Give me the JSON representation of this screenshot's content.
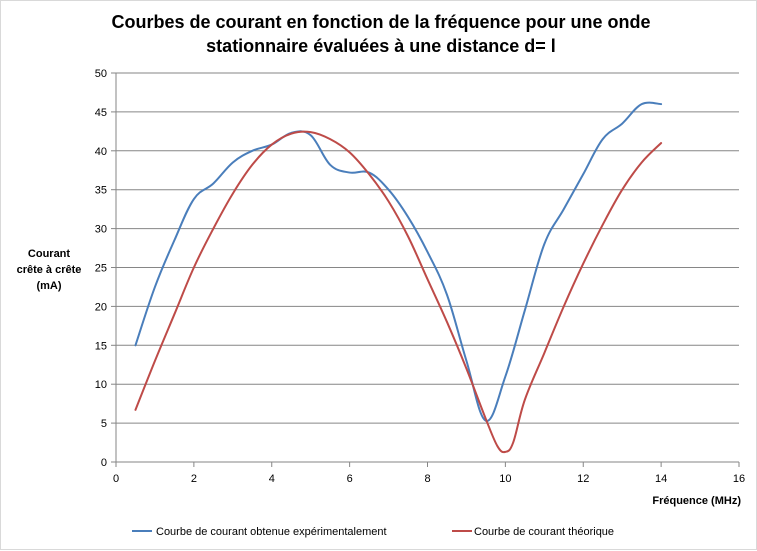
{
  "chart_data": {
    "type": "line",
    "title_lines": [
      "Courbes de courant en fonction de la fréquence  pour une onde",
      "stationnaire évaluées à une distance d= l"
    ],
    "ylabel_lines": [
      "Courant",
      "crête à crête",
      "(mA)"
    ],
    "xlabel": "Fréquence (MHz)",
    "xlim": [
      0,
      16
    ],
    "ylim": [
      0,
      50
    ],
    "x_ticks": [
      0,
      2,
      4,
      6,
      8,
      10,
      12,
      14,
      16
    ],
    "y_ticks": [
      0,
      5,
      10,
      15,
      20,
      25,
      30,
      35,
      40,
      45,
      50
    ],
    "grid": "horizontal",
    "legend_position": "bottom",
    "series": [
      {
        "name": "Courbe de courant obtenue expérimentalement",
        "color": "#4a7ebb",
        "points": [
          [
            0.5,
            15
          ],
          [
            1,
            22.5
          ],
          [
            1.5,
            28.5
          ],
          [
            2,
            33.8
          ],
          [
            2.5,
            35.8
          ],
          [
            3,
            38.5
          ],
          [
            3.5,
            40
          ],
          [
            4,
            40.8
          ],
          [
            4.5,
            42.3
          ],
          [
            5,
            42
          ],
          [
            5.5,
            38.2
          ],
          [
            6,
            37.2
          ],
          [
            6.5,
            37.2
          ],
          [
            7,
            35
          ],
          [
            7.5,
            31.5
          ],
          [
            8,
            27
          ],
          [
            8.5,
            21.5
          ],
          [
            9,
            13
          ],
          [
            9.5,
            5.3
          ],
          [
            10,
            11
          ],
          [
            10.5,
            19.5
          ],
          [
            11,
            28
          ],
          [
            11.5,
            32.5
          ],
          [
            12,
            37
          ],
          [
            12.5,
            41.5
          ],
          [
            13,
            43.5
          ],
          [
            13.5,
            46
          ],
          [
            14,
            46
          ]
        ]
      },
      {
        "name": "Courbe de courant théorique",
        "color": "#be4b48",
        "points": [
          [
            0.5,
            6.7
          ],
          [
            1,
            13
          ],
          [
            1.5,
            19
          ],
          [
            2,
            25
          ],
          [
            2.5,
            30
          ],
          [
            3,
            34.5
          ],
          [
            3.5,
            38.2
          ],
          [
            4,
            40.8
          ],
          [
            4.5,
            42.2
          ],
          [
            5,
            42.4
          ],
          [
            5.5,
            41.5
          ],
          [
            6,
            39.8
          ],
          [
            6.5,
            37
          ],
          [
            7,
            33.5
          ],
          [
            7.5,
            29
          ],
          [
            8,
            23.5
          ],
          [
            8.5,
            18
          ],
          [
            9,
            12
          ],
          [
            9.5,
            5.5
          ],
          [
            9.8,
            2
          ],
          [
            10,
            1.3
          ],
          [
            10.2,
            2.5
          ],
          [
            10.5,
            8
          ],
          [
            11,
            14
          ],
          [
            11.5,
            20
          ],
          [
            12,
            25.5
          ],
          [
            12.5,
            30.5
          ],
          [
            13,
            35
          ],
          [
            13.5,
            38.5
          ],
          [
            14,
            41
          ]
        ]
      }
    ]
  }
}
